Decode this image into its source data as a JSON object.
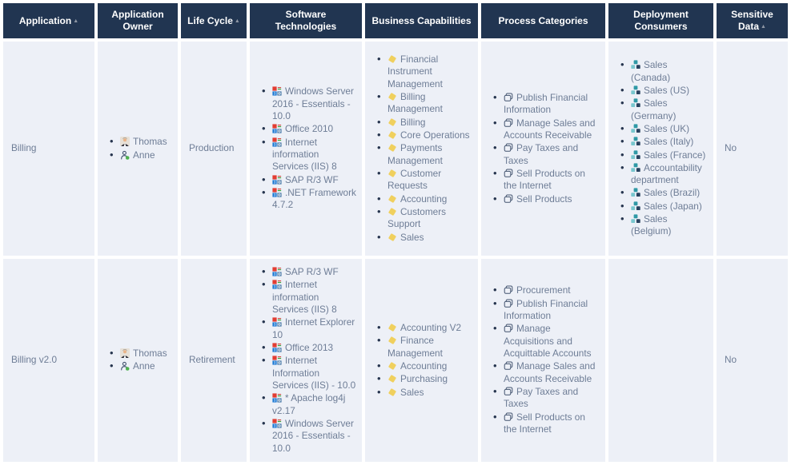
{
  "colors": {
    "header_bg": "#213551",
    "cell_bg": "#edf0f7",
    "body_text": "#6e7d96",
    "header_text": "#ffffff",
    "capability_yellow": "#f0d05e",
    "deployment_teal": "#2f99a6",
    "deployment_teal_light": "#79c7cf",
    "deployment_navy": "#27415e",
    "outline_navy": "#41526e"
  },
  "table": {
    "columns": [
      {
        "label": "Application",
        "sorted": "asc",
        "icon": null
      },
      {
        "label": "Application Owner",
        "sorted": null,
        "icon": null
      },
      {
        "label": "Life Cycle",
        "sorted": "asc",
        "icon": null
      },
      {
        "label": "Software Technologies",
        "sorted": null,
        "icon": "software-grid"
      },
      {
        "label": "Business Capabilities",
        "sorted": null,
        "icon": "capability-diamond"
      },
      {
        "label": "Process Categories",
        "sorted": null,
        "icon": "process-copy"
      },
      {
        "label": "Deployment Consumers",
        "sorted": null,
        "icon": "org-unit"
      },
      {
        "label": "Sensitive Data",
        "sorted": "asc",
        "icon": null
      }
    ],
    "rows": [
      {
        "application": "Billing",
        "owners": [
          {
            "name": "Thomas",
            "icon": "male-avatar"
          },
          {
            "name": "Anne",
            "icon": "person-online"
          }
        ],
        "lifecycle": "Production",
        "software": [
          "Windows Server 2016 - Essentials - 10.0",
          "Office 2010",
          "Internet information Services (IIS) 8",
          "SAP R/3 WF",
          ".NET Framework 4.7.2"
        ],
        "capabilities": [
          "Financial Instrument Management",
          "Billing Management",
          "Billing",
          "Core Operations",
          "Payments Management",
          "Customer Requests",
          "Accounting",
          "Customers Support",
          "Sales"
        ],
        "process": [
          "Publish Financial Information",
          "Manage Sales and Accounts Receivable",
          "Pay Taxes and Taxes",
          "Sell Products on the Internet",
          "Sell Products"
        ],
        "deployment": [
          "Sales (Canada)",
          "Sales (US)",
          "Sales (Germany)",
          "Sales (UK)",
          "Sales (Italy)",
          "Sales (France)",
          "Accountability department",
          "Sales (Brazil)",
          "Sales (Japan)",
          "Sales (Belgium)"
        ],
        "sensitive": "No"
      },
      {
        "application": "Billing v2.0",
        "owners": [
          {
            "name": "Thomas",
            "icon": "male-avatar"
          },
          {
            "name": "Anne",
            "icon": "person-online"
          }
        ],
        "lifecycle": "Retirement",
        "software": [
          "SAP R/3 WF",
          "Internet information Services (IIS) 8",
          "Internet Explorer 10",
          "Office 2013",
          "Internet Information Services (IIS) - 10.0",
          "* Apache log4j v2.17",
          "Windows Server 2016 - Essentials - 10.0"
        ],
        "capabilities": [
          "Accounting V2",
          "Finance Management",
          "Accounting",
          "Purchasing",
          "Sales"
        ],
        "process": [
          "Procurement",
          "Publish Financial Information",
          "Manage Acquisitions and Acquittable Accounts",
          "Manage Sales and Accounts Receivable",
          "Pay Taxes and Taxes",
          "Sell Products on the Internet"
        ],
        "deployment": [],
        "sensitive": "No"
      }
    ]
  }
}
